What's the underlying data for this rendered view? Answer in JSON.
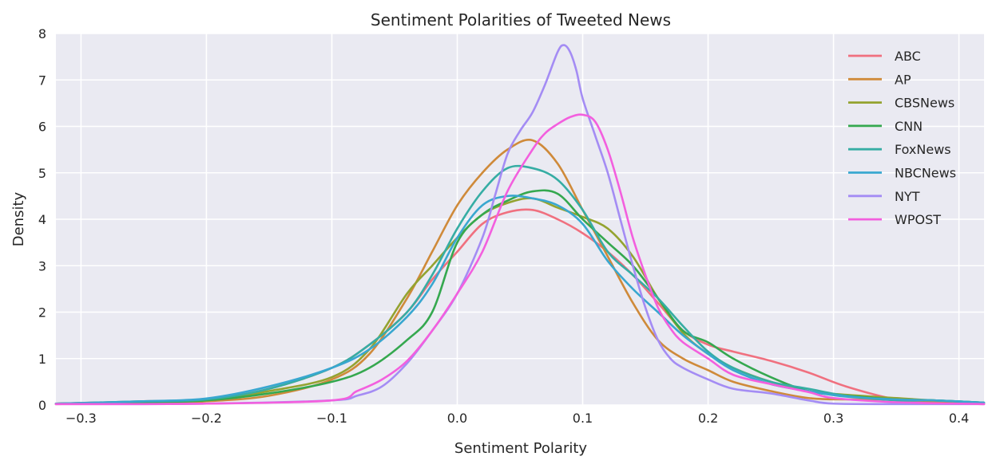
{
  "chart_data": {
    "type": "line",
    "title": "Sentiment Polarities of Tweeted News",
    "xlabel": "Sentiment Polarity",
    "ylabel": "Density",
    "xlim": [
      -0.32,
      0.42
    ],
    "ylim": [
      0,
      8
    ],
    "xticks": [
      -0.3,
      -0.2,
      -0.1,
      0.0,
      0.1,
      0.2,
      0.3,
      0.4
    ],
    "xtick_labels": [
      "−0.3",
      "−0.2",
      "−0.1",
      "0.0",
      "0.1",
      "0.2",
      "0.3",
      "0.4"
    ],
    "yticks": [
      0,
      1,
      2,
      3,
      4,
      5,
      6,
      7,
      8
    ],
    "ytick_labels": [
      "0",
      "1",
      "2",
      "3",
      "4",
      "5",
      "6",
      "7",
      "8"
    ],
    "grid": true,
    "legend": "top-right",
    "background": "#eaeaf2",
    "series": [
      {
        "name": "ABC",
        "color": "#f0707f",
        "x": [
          -0.32,
          -0.25,
          -0.2,
          -0.15,
          -0.1,
          -0.07,
          -0.04,
          -0.02,
          0.0,
          0.02,
          0.04,
          0.06,
          0.08,
          0.1,
          0.12,
          0.14,
          0.16,
          0.18,
          0.2,
          0.22,
          0.25,
          0.28,
          0.31,
          0.35,
          0.38,
          0.42
        ],
        "y": [
          0.03,
          0.08,
          0.12,
          0.35,
          0.8,
          1.3,
          2.0,
          2.7,
          3.3,
          3.9,
          4.15,
          4.2,
          4.0,
          3.7,
          3.3,
          2.8,
          2.2,
          1.6,
          1.3,
          1.15,
          0.95,
          0.7,
          0.4,
          0.12,
          0.05,
          0.02
        ]
      },
      {
        "name": "AP",
        "color": "#cf8a3a",
        "x": [
          -0.32,
          -0.25,
          -0.2,
          -0.15,
          -0.1,
          -0.07,
          -0.04,
          -0.02,
          0.0,
          0.02,
          0.04,
          0.06,
          0.08,
          0.1,
          0.12,
          0.14,
          0.16,
          0.18,
          0.2,
          0.22,
          0.25,
          0.28,
          0.31,
          0.35,
          0.38,
          0.42
        ],
        "y": [
          0.02,
          0.05,
          0.08,
          0.2,
          0.55,
          1.1,
          2.3,
          3.3,
          4.3,
          5.0,
          5.5,
          5.7,
          5.2,
          4.2,
          3.2,
          2.2,
          1.4,
          1.0,
          0.75,
          0.5,
          0.3,
          0.15,
          0.12,
          0.12,
          0.08,
          0.03
        ]
      },
      {
        "name": "CBSNews",
        "color": "#94a330",
        "x": [
          -0.32,
          -0.25,
          -0.2,
          -0.15,
          -0.1,
          -0.07,
          -0.04,
          -0.02,
          0.0,
          0.02,
          0.04,
          0.06,
          0.08,
          0.1,
          0.12,
          0.14,
          0.16,
          0.18,
          0.2,
          0.22,
          0.25,
          0.28,
          0.31,
          0.35,
          0.38,
          0.42
        ],
        "y": [
          0.03,
          0.07,
          0.1,
          0.3,
          0.6,
          1.2,
          2.4,
          3.0,
          3.6,
          4.1,
          4.35,
          4.45,
          4.25,
          4.05,
          3.8,
          3.2,
          2.3,
          1.55,
          1.1,
          0.8,
          0.5,
          0.3,
          0.22,
          0.15,
          0.1,
          0.05
        ]
      },
      {
        "name": "CNN",
        "color": "#35a84f",
        "x": [
          -0.32,
          -0.25,
          -0.2,
          -0.15,
          -0.1,
          -0.07,
          -0.04,
          -0.02,
          0.0,
          0.02,
          0.04,
          0.06,
          0.08,
          0.1,
          0.12,
          0.14,
          0.16,
          0.18,
          0.2,
          0.22,
          0.25,
          0.28,
          0.31,
          0.35,
          0.38,
          0.42
        ],
        "y": [
          0.03,
          0.06,
          0.1,
          0.25,
          0.5,
          0.8,
          1.4,
          2.0,
          3.5,
          4.1,
          4.4,
          4.6,
          4.55,
          4.0,
          3.5,
          3.0,
          2.3,
          1.6,
          1.35,
          1.0,
          0.6,
          0.3,
          0.2,
          0.12,
          0.1,
          0.05
        ]
      },
      {
        "name": "FoxNews",
        "color": "#36ada4",
        "x": [
          -0.32,
          -0.25,
          -0.2,
          -0.15,
          -0.1,
          -0.07,
          -0.04,
          -0.02,
          0.0,
          0.02,
          0.04,
          0.06,
          0.08,
          0.1,
          0.12,
          0.14,
          0.16,
          0.18,
          0.2,
          0.22,
          0.25,
          0.28,
          0.31,
          0.35,
          0.38,
          0.42
        ],
        "y": [
          0.03,
          0.08,
          0.12,
          0.35,
          0.8,
          1.3,
          2.0,
          2.8,
          3.8,
          4.6,
          5.1,
          5.1,
          4.85,
          4.2,
          3.3,
          2.8,
          2.3,
          1.7,
          1.15,
          0.8,
          0.5,
          0.35,
          0.2,
          0.1,
          0.1,
          0.05
        ]
      },
      {
        "name": "NBCNews",
        "color": "#39a7d0",
        "x": [
          -0.32,
          -0.25,
          -0.2,
          -0.15,
          -0.1,
          -0.07,
          -0.04,
          -0.02,
          0.0,
          0.02,
          0.04,
          0.06,
          0.08,
          0.1,
          0.12,
          0.14,
          0.16,
          0.18,
          0.2,
          0.22,
          0.25,
          0.28,
          0.31,
          0.35,
          0.38,
          0.42
        ],
        "y": [
          0.03,
          0.08,
          0.14,
          0.4,
          0.8,
          1.2,
          1.9,
          2.6,
          3.6,
          4.3,
          4.5,
          4.45,
          4.3,
          3.9,
          3.1,
          2.5,
          2.0,
          1.5,
          1.1,
          0.75,
          0.45,
          0.3,
          0.18,
          0.12,
          0.1,
          0.05
        ]
      },
      {
        "name": "NYT",
        "color": "#a48cf4",
        "x": [
          -0.32,
          -0.2,
          -0.1,
          -0.08,
          -0.06,
          -0.04,
          -0.02,
          0.0,
          0.02,
          0.03,
          0.04,
          0.05,
          0.06,
          0.07,
          0.08,
          0.085,
          0.09,
          0.095,
          0.1,
          0.11,
          0.12,
          0.13,
          0.14,
          0.15,
          0.16,
          0.17,
          0.18,
          0.2,
          0.22,
          0.25,
          0.28,
          0.3,
          0.35,
          0.42
        ],
        "y": [
          0.02,
          0.03,
          0.1,
          0.2,
          0.4,
          0.9,
          1.6,
          2.4,
          3.6,
          4.5,
          5.4,
          5.9,
          6.3,
          6.9,
          7.6,
          7.75,
          7.6,
          7.2,
          6.6,
          5.8,
          5.0,
          4.0,
          3.0,
          2.1,
          1.4,
          1.0,
          0.8,
          0.55,
          0.35,
          0.25,
          0.1,
          0.03,
          0.02,
          0.02
        ]
      },
      {
        "name": "WPOST",
        "color": "#f35fde",
        "x": [
          -0.32,
          -0.2,
          -0.1,
          -0.08,
          -0.06,
          -0.04,
          -0.02,
          0.0,
          0.02,
          0.04,
          0.06,
          0.07,
          0.08,
          0.09,
          0.1,
          0.11,
          0.12,
          0.13,
          0.14,
          0.15,
          0.16,
          0.17,
          0.18,
          0.2,
          0.22,
          0.25,
          0.28,
          0.3,
          0.35,
          0.42
        ],
        "y": [
          0.02,
          0.03,
          0.1,
          0.3,
          0.55,
          0.95,
          1.6,
          2.4,
          3.3,
          4.6,
          5.5,
          5.85,
          6.05,
          6.2,
          6.25,
          6.1,
          5.5,
          4.6,
          3.6,
          2.8,
          2.1,
          1.65,
          1.35,
          1.0,
          0.65,
          0.45,
          0.28,
          0.15,
          0.06,
          0.02
        ]
      }
    ]
  }
}
